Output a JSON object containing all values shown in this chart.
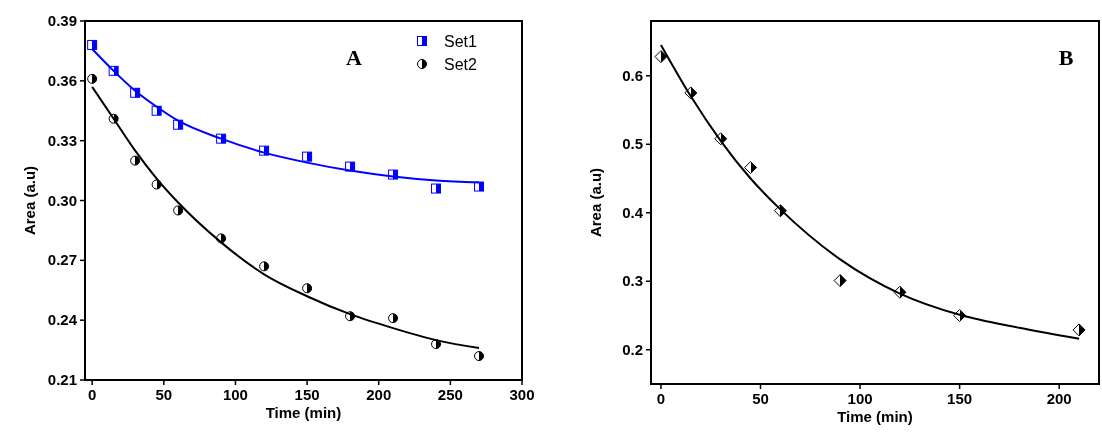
{
  "chart_data": [
    {
      "type": "scatter",
      "xlabel": "Time (min)",
      "ylabel": "Area (a.u)",
      "annotations": [
        "A"
      ],
      "xlim": [
        -5,
        300
      ],
      "xticks": [
        0,
        50,
        100,
        150,
        200,
        250,
        300
      ],
      "ylim": [
        0.21,
        0.39
      ],
      "yticks": [
        0.21,
        0.24,
        0.27,
        {
          "value": 0.3,
          "label": "0.30"
        },
        0.33,
        0.36,
        0.39
      ],
      "legend": "top right",
      "grid": false,
      "series": [
        {
          "name": "Set1",
          "color": "#0000ff",
          "marker": "square",
          "x": [
            0,
            15,
            30,
            45,
            60,
            90,
            120,
            150,
            180,
            210,
            240,
            270
          ],
          "values": [
            0.378,
            0.365,
            0.354,
            0.345,
            0.338,
            0.331,
            0.325,
            0.322,
            0.317,
            0.313,
            0.306,
            0.307
          ]
        },
        {
          "name": "Set2",
          "color": "#000000",
          "marker": "circle",
          "x": [
            0,
            15,
            30,
            45,
            60,
            90,
            120,
            150,
            180,
            210,
            240,
            270
          ],
          "values": [
            0.361,
            0.341,
            0.32,
            0.308,
            0.295,
            0.281,
            0.267,
            0.256,
            0.242,
            0.241,
            0.228,
            0.222
          ]
        },
        {
          "type": "line",
          "color": "#0000ff",
          "x": [
            0,
            15,
            30,
            45,
            60,
            90,
            120,
            150,
            180,
            210,
            240,
            270
          ],
          "values": [
            0.376,
            0.365,
            0.355,
            0.347,
            0.34,
            0.331,
            0.324,
            0.319,
            0.315,
            0.312,
            0.31,
            0.309
          ]
        },
        {
          "type": "line",
          "color": "#000000",
          "x": [
            0,
            15,
            30,
            45,
            60,
            90,
            120,
            150,
            180,
            210,
            240,
            270
          ],
          "values": [
            0.357,
            0.341,
            0.325,
            0.311,
            0.299,
            0.279,
            0.263,
            0.252,
            0.243,
            0.236,
            0.23,
            0.226
          ]
        }
      ]
    },
    {
      "type": "scatter",
      "xlabel": "Time (min)",
      "ylabel": "Area (a.u)",
      "annotations": [
        "B"
      ],
      "xlim": [
        -5,
        220
      ],
      "xticks": [
        0,
        50,
        100,
        150,
        200
      ],
      "ylim": [
        0.15,
        0.68
      ],
      "yticks": [
        0.2,
        0.3,
        0.4,
        0.5,
        0.6
      ],
      "grid": false,
      "series": [
        {
          "color": "#000000",
          "marker": "diamond",
          "x": [
            0,
            15,
            30,
            45,
            60,
            90,
            120,
            150,
            210
          ],
          "values": [
            0.628,
            0.575,
            0.508,
            0.466,
            0.403,
            0.301,
            0.284,
            0.25,
            0.229
          ]
        },
        {
          "type": "line",
          "color": "#000000",
          "x": [
            0,
            15,
            30,
            45,
            60,
            90,
            120,
            150,
            180,
            210
          ],
          "values": [
            0.645,
            0.57,
            0.505,
            0.45,
            0.405,
            0.332,
            0.282,
            0.251,
            0.232,
            0.216
          ]
        }
      ]
    }
  ]
}
